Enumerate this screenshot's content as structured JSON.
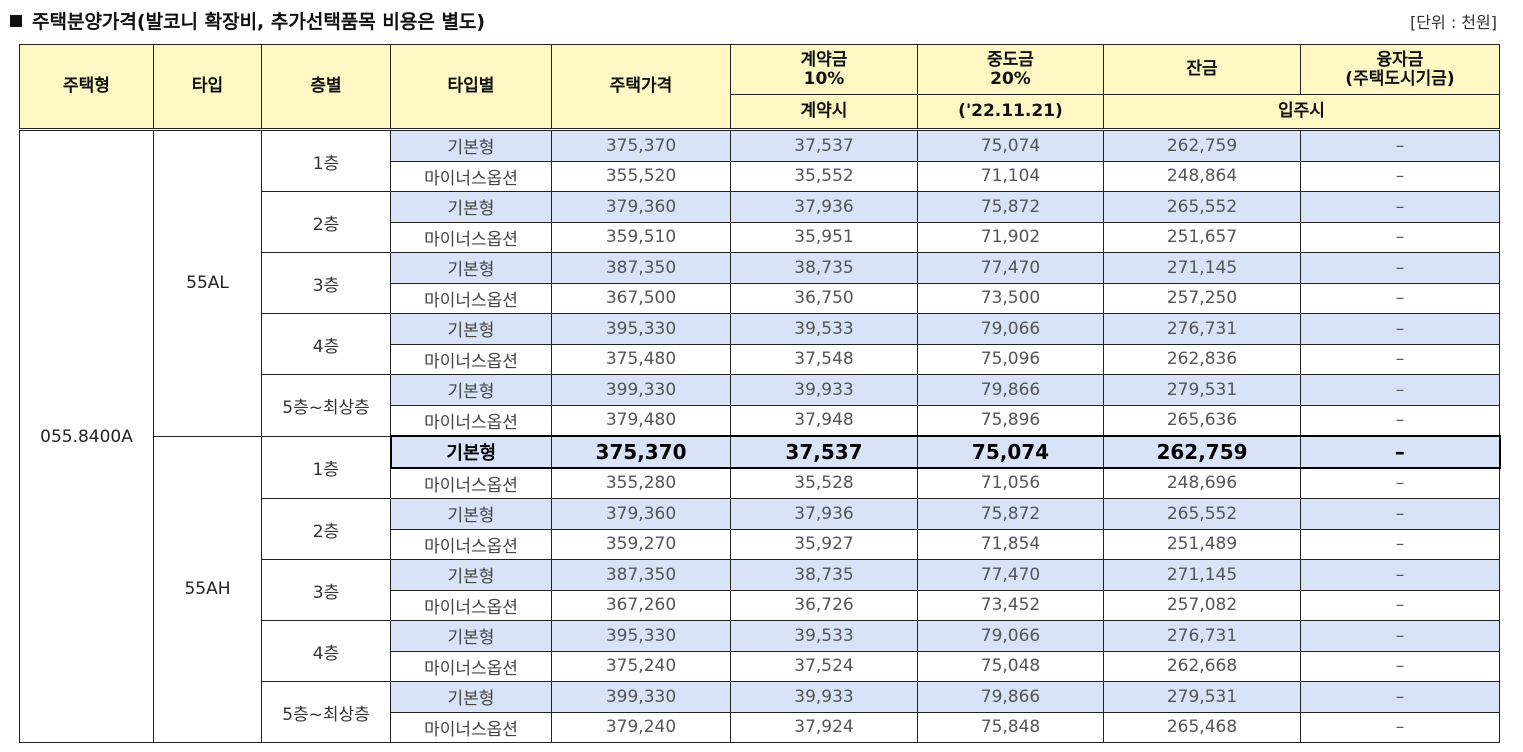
{
  "title": "주택분양가격(발코니 확장비, 추가선택품목 비용은 별도)",
  "unit": "[단위 : 천원]",
  "header": {
    "housing_type": "주택형",
    "type": "타입",
    "floor": "층별",
    "type_variant": "타입별",
    "price": "주택가격",
    "deposit": "계약금\n10%",
    "middle": "중도금\n20%",
    "balance": "잔금",
    "loan": "융자금\n(주택도시기금)",
    "deposit_sub": "계약시",
    "middle_sub": "('22.11.21)",
    "balance_sub": "입주시"
  },
  "housing_type": "055.8400A",
  "groups": [
    {
      "type": "55AL",
      "floors": [
        {
          "floor": "1층",
          "rows": [
            {
              "variant": "기본형",
              "price": "375,370",
              "deposit": "37,537",
              "middle": "75,074",
              "balance": "262,759",
              "loan": "–"
            },
            {
              "variant": "마이너스옵션",
              "price": "355,520",
              "deposit": "35,552",
              "middle": "71,104",
              "balance": "248,864",
              "loan": "–"
            }
          ]
        },
        {
          "floor": "2층",
          "rows": [
            {
              "variant": "기본형",
              "price": "379,360",
              "deposit": "37,936",
              "middle": "75,872",
              "balance": "265,552",
              "loan": "–"
            },
            {
              "variant": "마이너스옵션",
              "price": "359,510",
              "deposit": "35,951",
              "middle": "71,902",
              "balance": "251,657",
              "loan": "–"
            }
          ]
        },
        {
          "floor": "3층",
          "rows": [
            {
              "variant": "기본형",
              "price": "387,350",
              "deposit": "38,735",
              "middle": "77,470",
              "balance": "271,145",
              "loan": "–"
            },
            {
              "variant": "마이너스옵션",
              "price": "367,500",
              "deposit": "36,750",
              "middle": "73,500",
              "balance": "257,250",
              "loan": "–"
            }
          ]
        },
        {
          "floor": "4층",
          "rows": [
            {
              "variant": "기본형",
              "price": "395,330",
              "deposit": "39,533",
              "middle": "79,066",
              "balance": "276,731",
              "loan": "–"
            },
            {
              "variant": "마이너스옵션",
              "price": "375,480",
              "deposit": "37,548",
              "middle": "75,096",
              "balance": "262,836",
              "loan": "–"
            }
          ]
        },
        {
          "floor": "5층~최상층",
          "rows": [
            {
              "variant": "기본형",
              "price": "399,330",
              "deposit": "39,933",
              "middle": "79,866",
              "balance": "279,531",
              "loan": "–"
            },
            {
              "variant": "마이너스옵션",
              "price": "379,480",
              "deposit": "37,948",
              "middle": "75,896",
              "balance": "265,636",
              "loan": "–"
            }
          ]
        }
      ]
    },
    {
      "type": "55AH",
      "floors": [
        {
          "floor": "1층",
          "rows": [
            {
              "variant": "기본형",
              "price": "375,370",
              "deposit": "37,537",
              "middle": "75,074",
              "balance": "262,759",
              "loan": "–"
            },
            {
              "variant": "마이너스옵션",
              "price": "355,280",
              "deposit": "35,528",
              "middle": "71,056",
              "balance": "248,696",
              "loan": "–"
            }
          ]
        },
        {
          "floor": "2층",
          "rows": [
            {
              "variant": "기본형",
              "price": "379,360",
              "deposit": "37,936",
              "middle": "75,872",
              "balance": "265,552",
              "loan": "–"
            },
            {
              "variant": "마이너스옵션",
              "price": "359,270",
              "deposit": "35,927",
              "middle": "71,854",
              "balance": "251,489",
              "loan": "–"
            }
          ]
        },
        {
          "floor": "3층",
          "rows": [
            {
              "variant": "기본형",
              "price": "387,350",
              "deposit": "38,735",
              "middle": "77,470",
              "balance": "271,145",
              "loan": "–"
            },
            {
              "variant": "마이너스옵션",
              "price": "367,260",
              "deposit": "36,726",
              "middle": "73,452",
              "balance": "257,082",
              "loan": "–"
            }
          ]
        },
        {
          "floor": "4층",
          "rows": [
            {
              "variant": "기본형",
              "price": "395,330",
              "deposit": "39,533",
              "middle": "79,066",
              "balance": "276,731",
              "loan": "–"
            },
            {
              "variant": "마이너스옵션",
              "price": "375,240",
              "deposit": "37,524",
              "middle": "75,048",
              "balance": "262,668",
              "loan": "–"
            }
          ]
        },
        {
          "floor": "5층~최상층",
          "rows": [
            {
              "variant": "기본형",
              "price": "399,330",
              "deposit": "39,933",
              "middle": "79,866",
              "balance": "279,531",
              "loan": "–"
            },
            {
              "variant": "마이너스옵션",
              "price": "379,240",
              "deposit": "37,924",
              "middle": "75,848",
              "balance": "265,468",
              "loan": "–"
            }
          ]
        }
      ]
    }
  ],
  "highlighted_row": {
    "group": 1,
    "floor": 0,
    "row": 0
  },
  "colors": {
    "header_bg": "#fff8c4",
    "basic_row_bg": "#d8e3f8",
    "border": "#222222"
  }
}
